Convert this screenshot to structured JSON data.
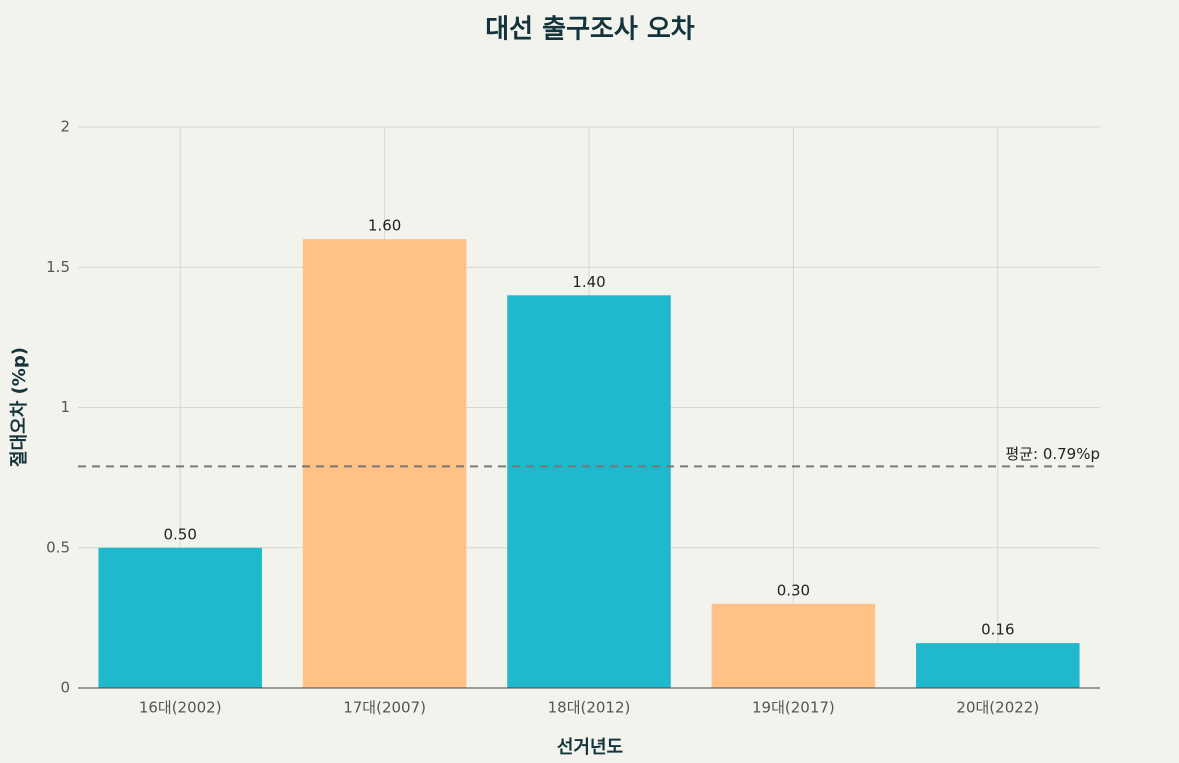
{
  "chart_data": {
    "type": "bar",
    "title": "대선 출구조사 오차",
    "x_label": "선거년도",
    "y_label": "절대오차 (%p)",
    "categories": [
      "16대(2002)",
      "17대(2007)",
      "18대(2012)",
      "19대(2017)",
      "20대(2022)"
    ],
    "values": [
      0.5,
      1.6,
      1.4,
      0.3,
      0.16
    ],
    "value_labels": [
      "0.50",
      "1.60",
      "1.40",
      "0.30",
      "0.16"
    ],
    "colors": [
      "#20b8cd",
      "#ffc185",
      "#20b8cd",
      "#ffc185",
      "#20b8cd"
    ],
    "ylim": [
      0,
      2
    ],
    "yticks": [
      0,
      0.5,
      1,
      1.5,
      2
    ],
    "grid": true,
    "reference_line": {
      "value": 0.79,
      "label": "평균: 0.79%p"
    }
  }
}
